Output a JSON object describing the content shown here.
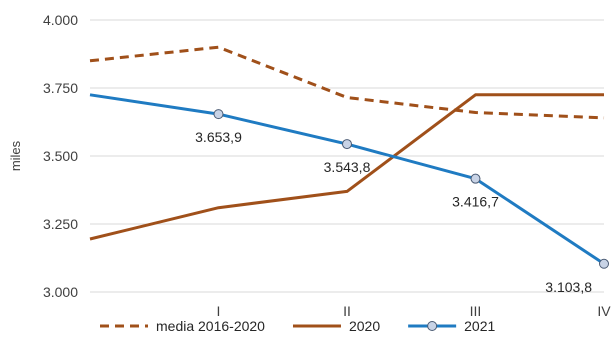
{
  "chart_data": {
    "type": "line",
    "title": "",
    "xlabel": "",
    "ylabel": "miles",
    "ylim": [
      3000,
      4000
    ],
    "y_ticks": [
      3000,
      3250,
      3500,
      3750,
      4000
    ],
    "y_tick_labels": [
      "3.000",
      "3.250",
      "3.500",
      "3.750",
      "4.000"
    ],
    "x_ticks": [
      1,
      2,
      3,
      4
    ],
    "x_tick_labels": [
      "I",
      "II",
      "III",
      "IV"
    ],
    "xlim": [
      0,
      4
    ],
    "grid": "horizontal",
    "legend_position": "bottom",
    "series": [
      {
        "name": "media 2016-2020",
        "style": "dashed",
        "color": "#A0501A",
        "markers": false,
        "x": [
          0,
          1,
          2,
          3,
          4
        ],
        "values": [
          3850,
          3900,
          3715,
          3660,
          3640
        ]
      },
      {
        "name": "2020",
        "style": "solid",
        "color": "#A0501A",
        "markers": false,
        "x": [
          0,
          1,
          2,
          3,
          4
        ],
        "values": [
          3195,
          3310,
          3370,
          3725,
          3725
        ]
      },
      {
        "name": "2021",
        "style": "solid",
        "color": "#1F7BC2",
        "markers": true,
        "x": [
          0,
          1,
          2,
          3,
          4
        ],
        "values": [
          3725,
          3653.9,
          3543.8,
          3416.7,
          3103.8
        ],
        "marker_from_index": 1,
        "data_labels": [
          "",
          "3.653,9",
          "3.543,8",
          "3.416,7",
          "3.103,8"
        ]
      }
    ]
  }
}
